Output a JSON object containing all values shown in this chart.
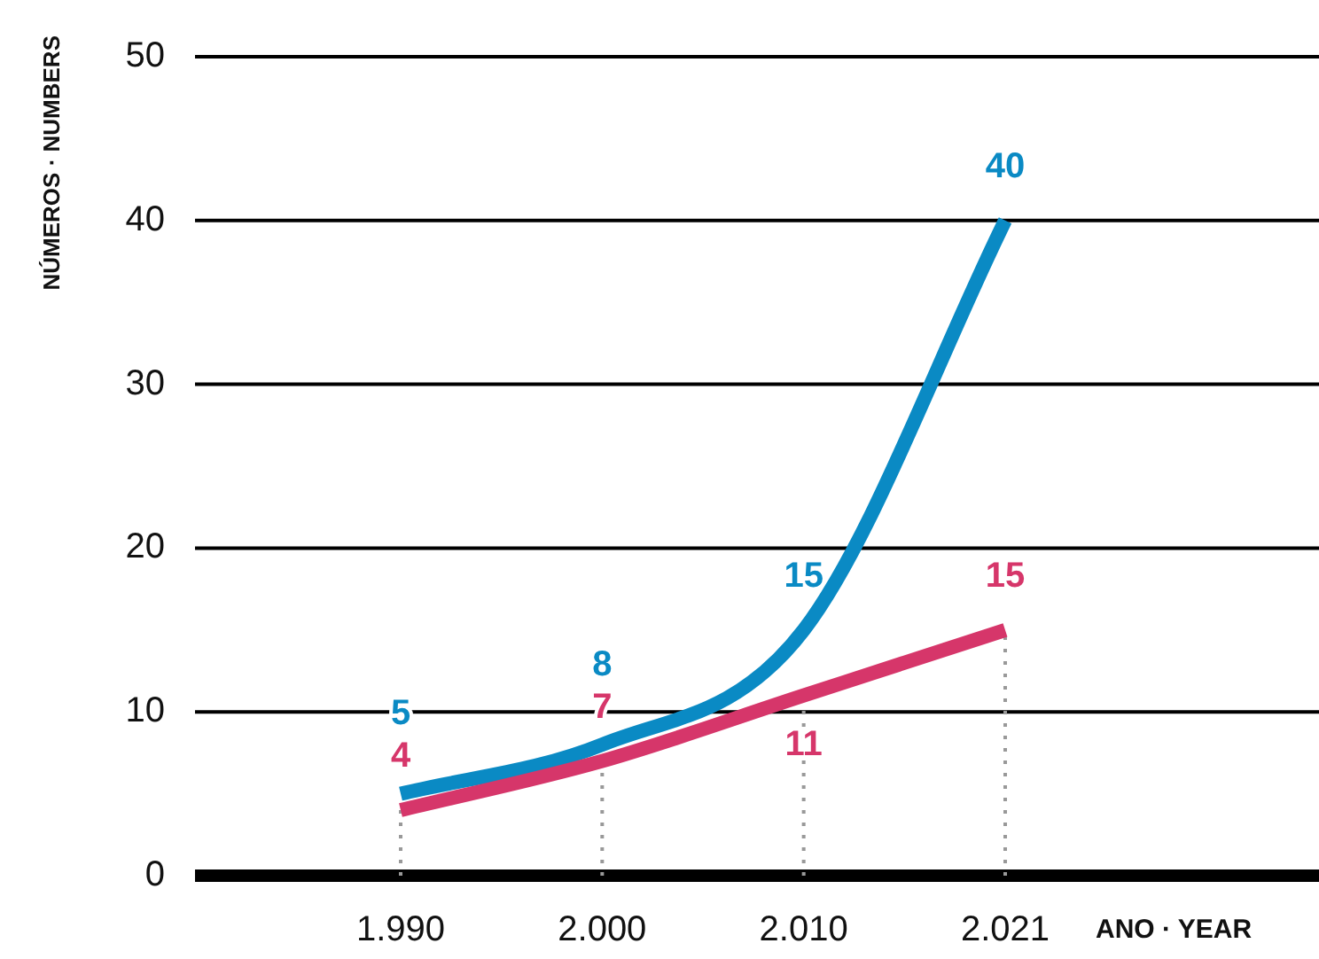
{
  "chart_data": {
    "type": "line",
    "ylabel": "NÚMEROS · NUMBERS",
    "xlabel": "ANO · YEAR",
    "categories": [
      "1.990",
      "2.000",
      "2.010",
      "2.021"
    ],
    "series": [
      {
        "color": "#d6366a",
        "values": [
          4,
          7,
          11,
          15
        ]
      },
      {
        "color": "#0a8ac4",
        "values": [
          5,
          8,
          15,
          40
        ]
      }
    ],
    "ylim": [
      0,
      50
    ],
    "yticks": [
      0,
      10,
      20,
      30,
      40,
      50
    ],
    "grid": "y",
    "data_labels": true,
    "legend": false,
    "marker": "none",
    "line_style": "solid"
  }
}
